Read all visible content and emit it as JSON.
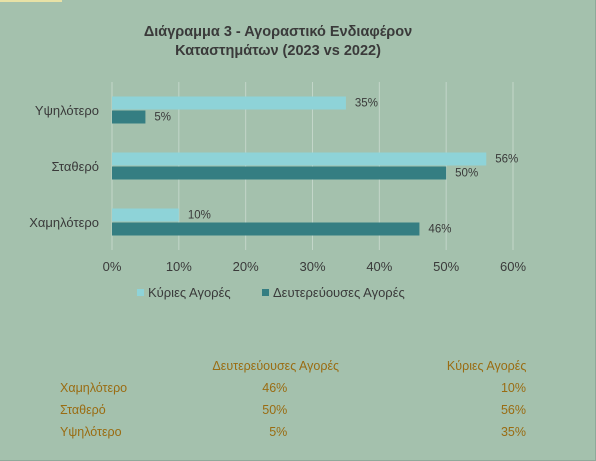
{
  "chart_data": {
    "type": "bar",
    "orientation": "horizontal",
    "title": "Διάγραμμα 3 - Αγοραστικό  Ενδιαφέρον Καταστημάτων  (2023 vs 2022)",
    "title_lines": [
      "Διάγραμμα 3 - Αγοραστικό  Ενδιαφέρον",
      "Καταστημάτων  (2023 vs 2022)"
    ],
    "categories": [
      "Υψηλότερο",
      "Σταθερό",
      "Χαμηλότερο"
    ],
    "series": [
      {
        "name": "Κύριες Αγορές",
        "values": [
          35,
          56,
          10
        ],
        "color": "#8ed3d8"
      },
      {
        "name": "Δευτερεύουσες Αγορές",
        "values": [
          5,
          50,
          46
        ],
        "color": "#357e82"
      }
    ],
    "value_suffix": "%",
    "xlim": [
      0,
      60
    ],
    "xticks": [
      "0%",
      "10%",
      "20%",
      "30%",
      "40%",
      "50%",
      "60%"
    ],
    "grid": true,
    "legend_position": "bottom"
  },
  "table": {
    "headers": [
      "",
      "Δευτερεύουσες Αγορές",
      "Κύριες Αγορές"
    ],
    "rows": [
      {
        "label": "Χαμηλότερο",
        "secondary": "46%",
        "primary": "10%"
      },
      {
        "label": "Σταθερό",
        "secondary": "50%",
        "primary": "56%"
      },
      {
        "label": "Υψηλότερο",
        "secondary": "5%",
        "primary": "35%"
      }
    ]
  },
  "colors": {
    "background": "#a4c1ad",
    "gridline": "#c3d6c9",
    "text": "#3a3a3a",
    "table_text": "#9a6c12"
  }
}
